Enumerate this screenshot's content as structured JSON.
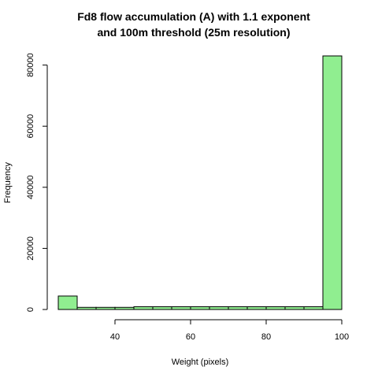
{
  "chart_data": {
    "type": "bar",
    "title_line1": "Fd8 flow accumulation (A) with 1.1 exponent",
    "title_line2": "and 100m threshold (25m resolution)",
    "xlabel": "Weight (pixels)",
    "ylabel": "Frequency",
    "bar_color": "#90EE90",
    "xlim": [
      25,
      100
    ],
    "ylim": [
      0,
      83000
    ],
    "x_ticks": [
      40,
      60,
      80,
      100
    ],
    "y_ticks": [
      0,
      20000,
      40000,
      60000,
      80000
    ],
    "bins": [
      {
        "x0": 25,
        "x1": 30,
        "value": 4400
      },
      {
        "x0": 30,
        "x1": 35,
        "value": 700
      },
      {
        "x0": 35,
        "x1": 40,
        "value": 700
      },
      {
        "x0": 40,
        "x1": 45,
        "value": 700
      },
      {
        "x0": 45,
        "x1": 50,
        "value": 900
      },
      {
        "x0": 50,
        "x1": 55,
        "value": 900
      },
      {
        "x0": 55,
        "x1": 60,
        "value": 900
      },
      {
        "x0": 60,
        "x1": 65,
        "value": 900
      },
      {
        "x0": 65,
        "x1": 70,
        "value": 900
      },
      {
        "x0": 70,
        "x1": 75,
        "value": 900
      },
      {
        "x0": 75,
        "x1": 80,
        "value": 900
      },
      {
        "x0": 80,
        "x1": 85,
        "value": 900
      },
      {
        "x0": 85,
        "x1": 90,
        "value": 900
      },
      {
        "x0": 90,
        "x1": 95,
        "value": 900
      },
      {
        "x0": 95,
        "x1": 100,
        "value": 83000
      }
    ]
  }
}
